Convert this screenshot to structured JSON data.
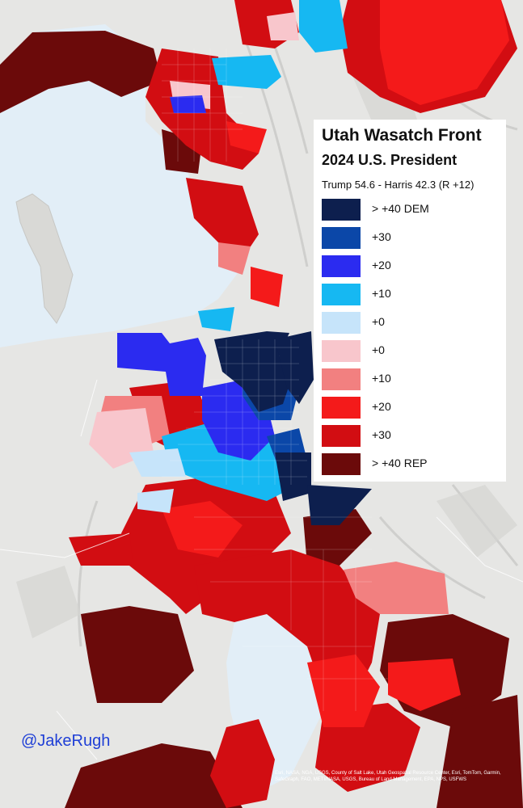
{
  "legend": {
    "title": "Utah Wasatch Front",
    "subtitle": "2024 U.S. President",
    "result": "Trump 54.6 - Harris 42.3 (R +12)",
    "items": [
      {
        "label": "> +40 DEM",
        "color": "#0d1f4e"
      },
      {
        "label": "+30",
        "color": "#0b47a8"
      },
      {
        "label": "+20",
        "color": "#2b2bf0"
      },
      {
        "label": "+10",
        "color": "#16b8f2"
      },
      {
        "label": "+0",
        "color": "#c6e4fa"
      },
      {
        "label": "+0",
        "color": "#f8c6cc"
      },
      {
        "label": "+10",
        "color": "#f28080"
      },
      {
        "label": "+20",
        "color": "#f41a1a"
      },
      {
        "label": "+30",
        "color": "#d20d12"
      },
      {
        "label": "> +40 REP",
        "color": "#6b0a0a"
      }
    ]
  },
  "credit": "@JakeRugh",
  "attribution": "Esri, NASA, NGA, USGS, County of Salt Lake, Utah Geospatial Resource Center, Esri, TomTom, Garmin, SafeGraph, FAO, METI/NASA, USGS, Bureau of Land Management, EPA, NPS, USFWS",
  "colors": {
    "lake": "#e2eef7",
    "terrain": "#e6e6e4"
  }
}
